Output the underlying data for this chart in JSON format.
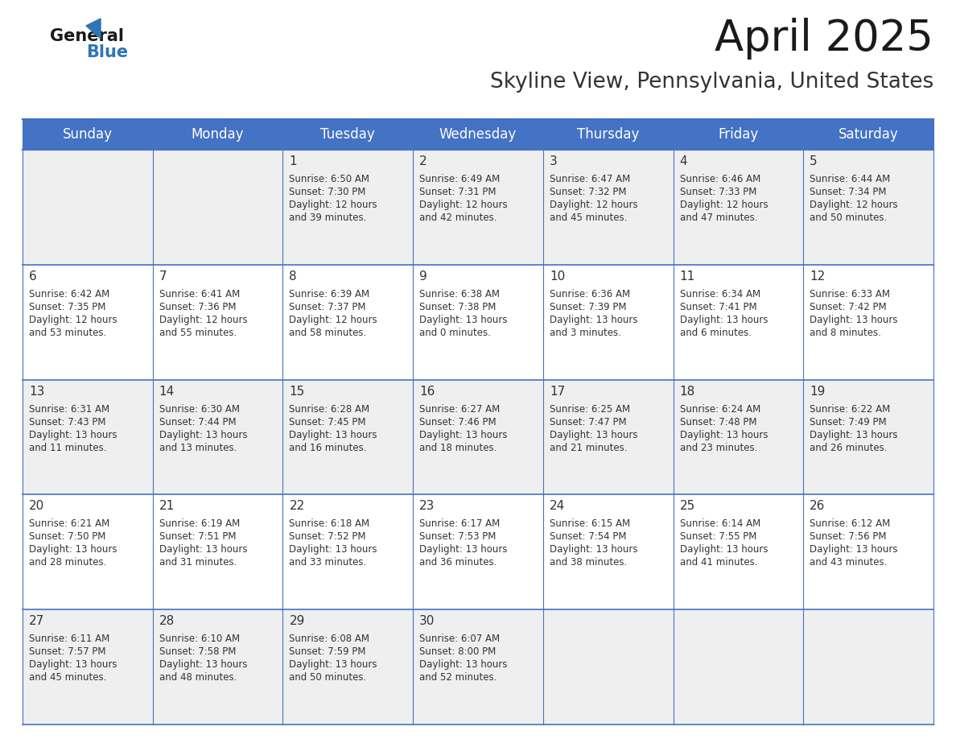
{
  "title": "April 2025",
  "subtitle": "Skyline View, Pennsylvania, United States",
  "header_bg_color": "#4472C4",
  "header_text_color": "#FFFFFF",
  "header_font_size": 12,
  "day_names": [
    "Sunday",
    "Monday",
    "Tuesday",
    "Wednesday",
    "Thursday",
    "Friday",
    "Saturday"
  ],
  "title_font_size": 38,
  "subtitle_font_size": 19,
  "cell_text_color": "#333333",
  "date_num_color": "#333333",
  "date_num_font_size": 11,
  "cell_info_font_size": 8.5,
  "alt_row_color": "#EFEFEF",
  "white_color": "#FFFFFF",
  "border_color": "#4472C4",
  "logo_general_color": "#1a1a1a",
  "logo_blue_color": "#2E75B6",
  "weeks": [
    [
      {
        "date": "",
        "sunrise": "",
        "sunset": "",
        "daylight": ""
      },
      {
        "date": "",
        "sunrise": "",
        "sunset": "",
        "daylight": ""
      },
      {
        "date": "1",
        "sunrise": "6:50 AM",
        "sunset": "7:30 PM",
        "daylight": "12 hours and 39 minutes."
      },
      {
        "date": "2",
        "sunrise": "6:49 AM",
        "sunset": "7:31 PM",
        "daylight": "12 hours and 42 minutes."
      },
      {
        "date": "3",
        "sunrise": "6:47 AM",
        "sunset": "7:32 PM",
        "daylight": "12 hours and 45 minutes."
      },
      {
        "date": "4",
        "sunrise": "6:46 AM",
        "sunset": "7:33 PM",
        "daylight": "12 hours and 47 minutes."
      },
      {
        "date": "5",
        "sunrise": "6:44 AM",
        "sunset": "7:34 PM",
        "daylight": "12 hours and 50 minutes."
      }
    ],
    [
      {
        "date": "6",
        "sunrise": "6:42 AM",
        "sunset": "7:35 PM",
        "daylight": "12 hours and 53 minutes."
      },
      {
        "date": "7",
        "sunrise": "6:41 AM",
        "sunset": "7:36 PM",
        "daylight": "12 hours and 55 minutes."
      },
      {
        "date": "8",
        "sunrise": "6:39 AM",
        "sunset": "7:37 PM",
        "daylight": "12 hours and 58 minutes."
      },
      {
        "date": "9",
        "sunrise": "6:38 AM",
        "sunset": "7:38 PM",
        "daylight": "13 hours and 0 minutes."
      },
      {
        "date": "10",
        "sunrise": "6:36 AM",
        "sunset": "7:39 PM",
        "daylight": "13 hours and 3 minutes."
      },
      {
        "date": "11",
        "sunrise": "6:34 AM",
        "sunset": "7:41 PM",
        "daylight": "13 hours and 6 minutes."
      },
      {
        "date": "12",
        "sunrise": "6:33 AM",
        "sunset": "7:42 PM",
        "daylight": "13 hours and 8 minutes."
      }
    ],
    [
      {
        "date": "13",
        "sunrise": "6:31 AM",
        "sunset": "7:43 PM",
        "daylight": "13 hours and 11 minutes."
      },
      {
        "date": "14",
        "sunrise": "6:30 AM",
        "sunset": "7:44 PM",
        "daylight": "13 hours and 13 minutes."
      },
      {
        "date": "15",
        "sunrise": "6:28 AM",
        "sunset": "7:45 PM",
        "daylight": "13 hours and 16 minutes."
      },
      {
        "date": "16",
        "sunrise": "6:27 AM",
        "sunset": "7:46 PM",
        "daylight": "13 hours and 18 minutes."
      },
      {
        "date": "17",
        "sunrise": "6:25 AM",
        "sunset": "7:47 PM",
        "daylight": "13 hours and 21 minutes."
      },
      {
        "date": "18",
        "sunrise": "6:24 AM",
        "sunset": "7:48 PM",
        "daylight": "13 hours and 23 minutes."
      },
      {
        "date": "19",
        "sunrise": "6:22 AM",
        "sunset": "7:49 PM",
        "daylight": "13 hours and 26 minutes."
      }
    ],
    [
      {
        "date": "20",
        "sunrise": "6:21 AM",
        "sunset": "7:50 PM",
        "daylight": "13 hours and 28 minutes."
      },
      {
        "date": "21",
        "sunrise": "6:19 AM",
        "sunset": "7:51 PM",
        "daylight": "13 hours and 31 minutes."
      },
      {
        "date": "22",
        "sunrise": "6:18 AM",
        "sunset": "7:52 PM",
        "daylight": "13 hours and 33 minutes."
      },
      {
        "date": "23",
        "sunrise": "6:17 AM",
        "sunset": "7:53 PM",
        "daylight": "13 hours and 36 minutes."
      },
      {
        "date": "24",
        "sunrise": "6:15 AM",
        "sunset": "7:54 PM",
        "daylight": "13 hours and 38 minutes."
      },
      {
        "date": "25",
        "sunrise": "6:14 AM",
        "sunset": "7:55 PM",
        "daylight": "13 hours and 41 minutes."
      },
      {
        "date": "26",
        "sunrise": "6:12 AM",
        "sunset": "7:56 PM",
        "daylight": "13 hours and 43 minutes."
      }
    ],
    [
      {
        "date": "27",
        "sunrise": "6:11 AM",
        "sunset": "7:57 PM",
        "daylight": "13 hours and 45 minutes."
      },
      {
        "date": "28",
        "sunrise": "6:10 AM",
        "sunset": "7:58 PM",
        "daylight": "13 hours and 48 minutes."
      },
      {
        "date": "29",
        "sunrise": "6:08 AM",
        "sunset": "7:59 PM",
        "daylight": "13 hours and 50 minutes."
      },
      {
        "date": "30",
        "sunrise": "6:07 AM",
        "sunset": "8:00 PM",
        "daylight": "13 hours and 52 minutes."
      },
      {
        "date": "",
        "sunrise": "",
        "sunset": "",
        "daylight": ""
      },
      {
        "date": "",
        "sunrise": "",
        "sunset": "",
        "daylight": ""
      },
      {
        "date": "",
        "sunrise": "",
        "sunset": "",
        "daylight": ""
      }
    ]
  ]
}
